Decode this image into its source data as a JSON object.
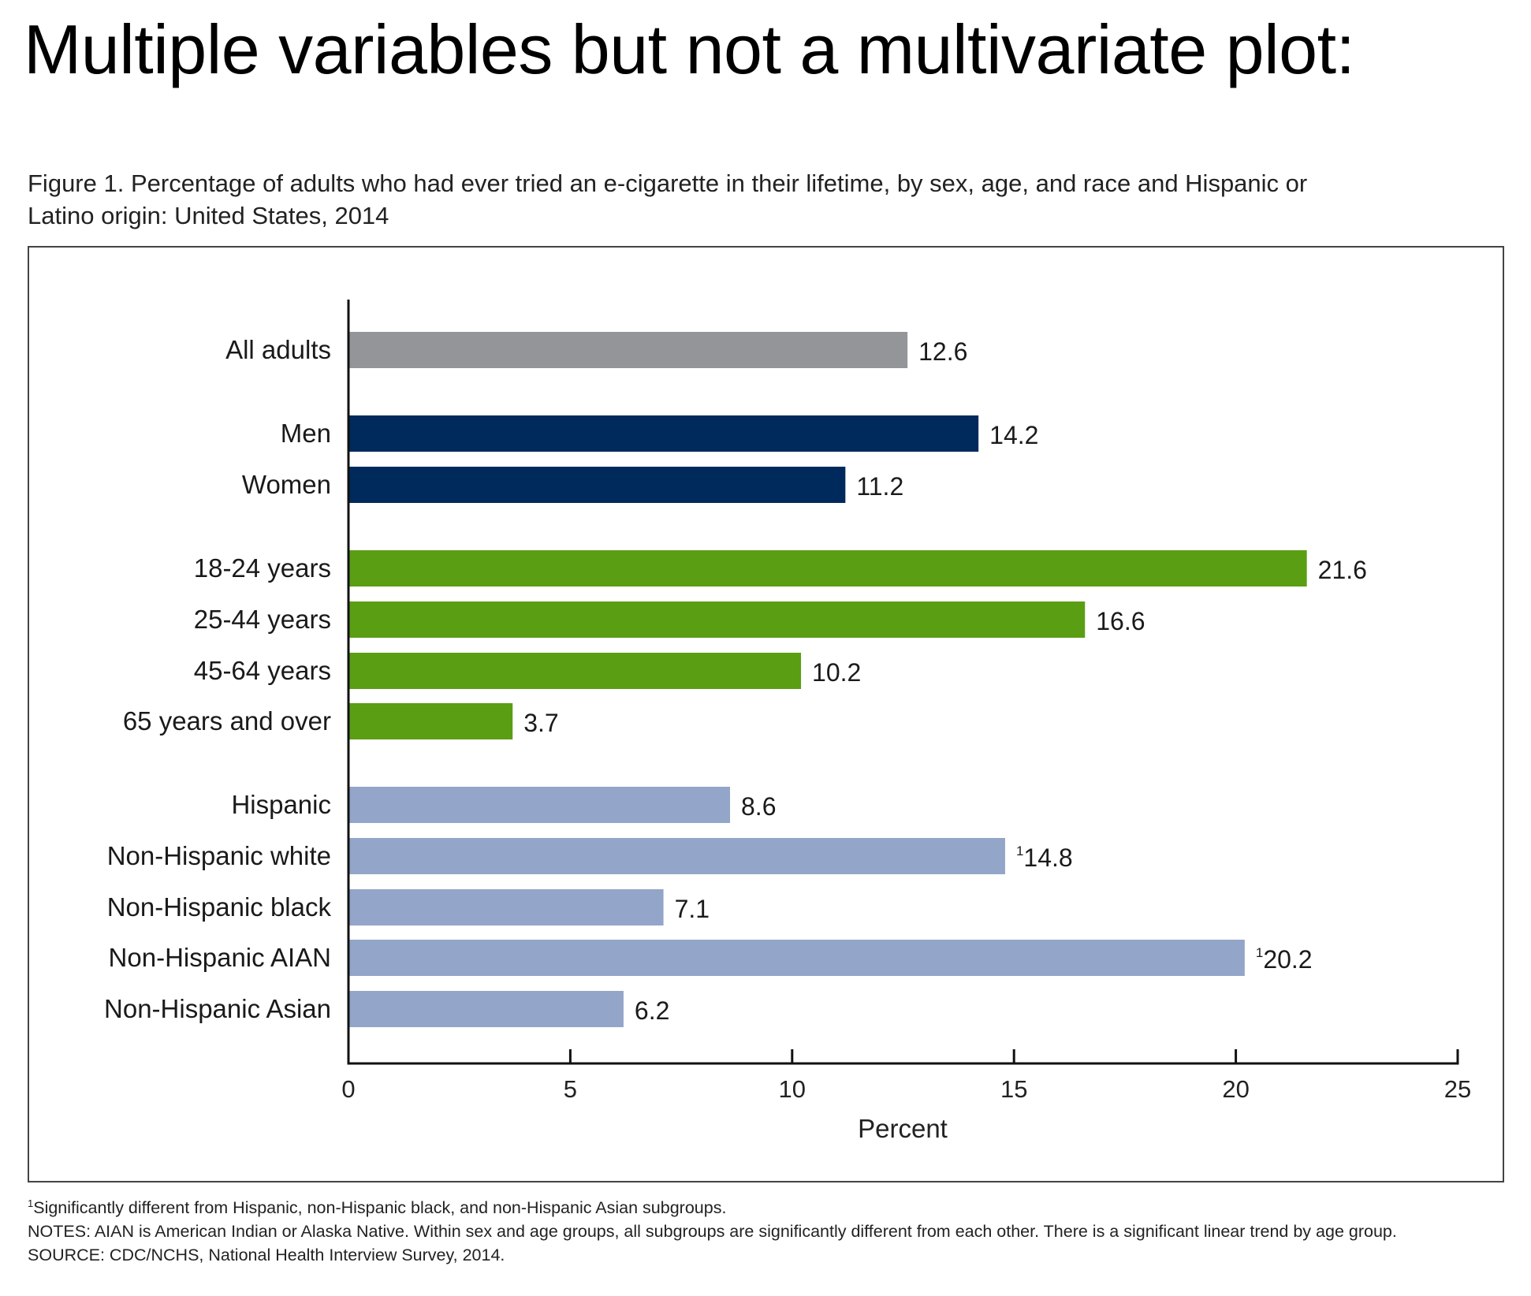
{
  "slide_title": "Multiple variables but not a multivariate plot:",
  "caption_line1": "Figure 1. Percentage of adults who had ever tried an e-cigarette in their lifetime, by sex, age, and race and Hispanic or",
  "caption_line2": "Latino origin: United States, 2014",
  "chart_data": {
    "type": "bar",
    "orientation": "horizontal",
    "title": "Figure 1. Percentage of adults who had ever tried an e-cigarette in their lifetime, by sex, age, and race and Hispanic or Latino origin: United States, 2014",
    "xlabel": "Percent",
    "ylabel": "",
    "xlim": [
      0,
      25
    ],
    "xticks": [
      0,
      5,
      10,
      15,
      20,
      25
    ],
    "categories": [
      "All adults",
      "Men",
      "Women",
      "18-24 years",
      "25-44 years",
      "45-64 years",
      "65 years and over",
      "Hispanic",
      "Non-Hispanic white",
      "Non-Hispanic black",
      "Non-Hispanic AIAN",
      "Non-Hispanic Asian"
    ],
    "values": [
      12.6,
      14.2,
      11.2,
      21.6,
      16.6,
      10.2,
      3.7,
      8.6,
      14.8,
      7.1,
      20.2,
      6.2
    ],
    "value_labels": [
      "12.6",
      "14.2",
      "11.2",
      "21.6",
      "16.6",
      "10.2",
      "3.7",
      "8.6",
      "14.8",
      "7.1",
      "20.2",
      "6.2"
    ],
    "footnote_markers": [
      "",
      "",
      "",
      "",
      "",
      "",
      "",
      "",
      "1",
      "",
      "1",
      ""
    ],
    "groups": [
      "overall",
      "sex",
      "sex",
      "age",
      "age",
      "age",
      "age",
      "race",
      "race",
      "race",
      "race",
      "race"
    ],
    "colors": {
      "overall": "#939598",
      "sex": "#002a5c",
      "age": "#5a9e14",
      "race": "#93a5c8"
    },
    "grid": false
  },
  "footnote_marker": "1",
  "footnote_text": "Significantly different from Hispanic, non-Hispanic black, and non-Hispanic Asian subgroups.",
  "notes_text": "NOTES: AIAN is American Indian or Alaska Native. Within sex and age groups, all subgroups are significantly different from each other. There is a significant linear trend by age group.",
  "source_text": "SOURCE: CDC/NCHS, National Health Interview Survey, 2014."
}
